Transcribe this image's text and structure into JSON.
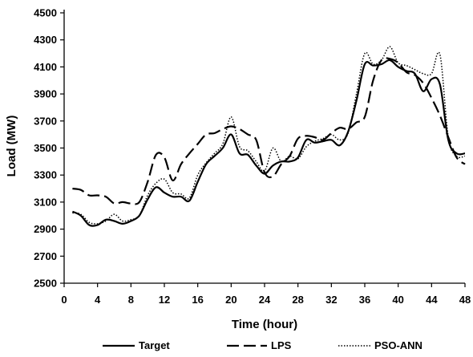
{
  "chart_data": {
    "type": "line",
    "title": "",
    "xlabel": "Time (hour)",
    "ylabel": "Load (MW)",
    "xlim": [
      0,
      48
    ],
    "ylim": [
      2500,
      4500
    ],
    "xticks": [
      0,
      4,
      8,
      12,
      16,
      20,
      24,
      28,
      32,
      36,
      40,
      44,
      48
    ],
    "yticks": [
      2500,
      2700,
      2900,
      3100,
      3300,
      3500,
      3700,
      3900,
      4100,
      4300,
      4500
    ],
    "grid": false,
    "legend_position": "bottom",
    "x": [
      1,
      2,
      3,
      4,
      5,
      6,
      7,
      8,
      9,
      10,
      11,
      12,
      13,
      14,
      15,
      16,
      17,
      18,
      19,
      20,
      21,
      22,
      23,
      24,
      25,
      26,
      27,
      28,
      29,
      30,
      31,
      32,
      33,
      34,
      35,
      36,
      37,
      38,
      39,
      40,
      41,
      42,
      43,
      44,
      45,
      46,
      47,
      48
    ],
    "series": [
      {
        "name": "Target",
        "style": "solid",
        "color": "#000000",
        "values": [
          3030,
          3000,
          2930,
          2930,
          2970,
          2960,
          2940,
          2960,
          3000,
          3120,
          3210,
          3170,
          3140,
          3140,
          3110,
          3250,
          3380,
          3440,
          3500,
          3600,
          3460,
          3450,
          3370,
          3310,
          3370,
          3400,
          3400,
          3430,
          3560,
          3540,
          3550,
          3560,
          3520,
          3620,
          3850,
          4120,
          4110,
          4120,
          4150,
          4100,
          4070,
          4050,
          3920,
          4010,
          3970,
          3560,
          3460,
          3460
        ]
      },
      {
        "name": "LPS",
        "style": "dashed",
        "color": "#000000",
        "values": [
          3200,
          3190,
          3150,
          3150,
          3140,
          3090,
          3100,
          3090,
          3100,
          3250,
          3450,
          3430,
          3260,
          3380,
          3460,
          3530,
          3600,
          3610,
          3640,
          3660,
          3640,
          3600,
          3560,
          3320,
          3290,
          3380,
          3440,
          3570,
          3590,
          3580,
          3560,
          3610,
          3650,
          3640,
          3690,
          3730,
          4000,
          4150,
          4160,
          4130,
          4060,
          4040,
          3980,
          3870,
          3740,
          3580,
          3430,
          3380
        ]
      },
      {
        "name": "PSO-ANN",
        "style": "dotted",
        "color": "#000000",
        "values": [
          3020,
          3010,
          2950,
          2940,
          2960,
          3010,
          2960,
          2970,
          3000,
          3150,
          3240,
          3270,
          3170,
          3160,
          3130,
          3300,
          3390,
          3460,
          3530,
          3730,
          3510,
          3480,
          3400,
          3330,
          3500,
          3400,
          3440,
          3420,
          3510,
          3550,
          3570,
          3600,
          3560,
          3610,
          3900,
          4200,
          4120,
          4150,
          4250,
          4130,
          4110,
          4080,
          4050,
          4050,
          4190,
          3580,
          3440,
          3440
        ]
      }
    ]
  }
}
